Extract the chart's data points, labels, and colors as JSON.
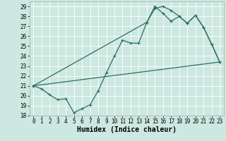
{
  "xlabel": "Humidex (Indice chaleur)",
  "bg_color": "#cce8e0",
  "grid_color": "#ffffff",
  "line_color": "#2d6e5e",
  "xlim": [
    -0.5,
    23.5
  ],
  "ylim": [
    18,
    29.5
  ],
  "xticks": [
    0,
    1,
    2,
    3,
    4,
    5,
    6,
    7,
    8,
    9,
    10,
    11,
    12,
    13,
    14,
    15,
    16,
    17,
    18,
    19,
    20,
    21,
    22,
    23
  ],
  "yticks": [
    18,
    19,
    20,
    21,
    22,
    23,
    24,
    25,
    26,
    27,
    28,
    29
  ],
  "line1_x": [
    0,
    1,
    2,
    3,
    4,
    5,
    6,
    7,
    8,
    9,
    10,
    11,
    12,
    13,
    14,
    15,
    16,
    17,
    18,
    19,
    20,
    21,
    22,
    23
  ],
  "line1_y": [
    21.0,
    20.7,
    20.1,
    19.6,
    19.7,
    18.3,
    18.7,
    19.1,
    20.5,
    22.3,
    24.0,
    25.6,
    25.3,
    25.3,
    27.4,
    28.8,
    29.0,
    28.6,
    28.0,
    27.3,
    28.1,
    26.9,
    25.2,
    23.4
  ],
  "line2_x": [
    0,
    23
  ],
  "line2_y": [
    21.0,
    23.4
  ],
  "line3_x": [
    0,
    14,
    15,
    16,
    17,
    18,
    19,
    20,
    21,
    22,
    23
  ],
  "line3_y": [
    21.0,
    27.4,
    29.0,
    28.3,
    27.5,
    28.0,
    27.3,
    28.1,
    26.9,
    25.2,
    23.4
  ],
  "marker_size": 3.0,
  "linewidth": 0.9,
  "xlabel_fontsize": 7,
  "tick_fontsize": 5.5
}
